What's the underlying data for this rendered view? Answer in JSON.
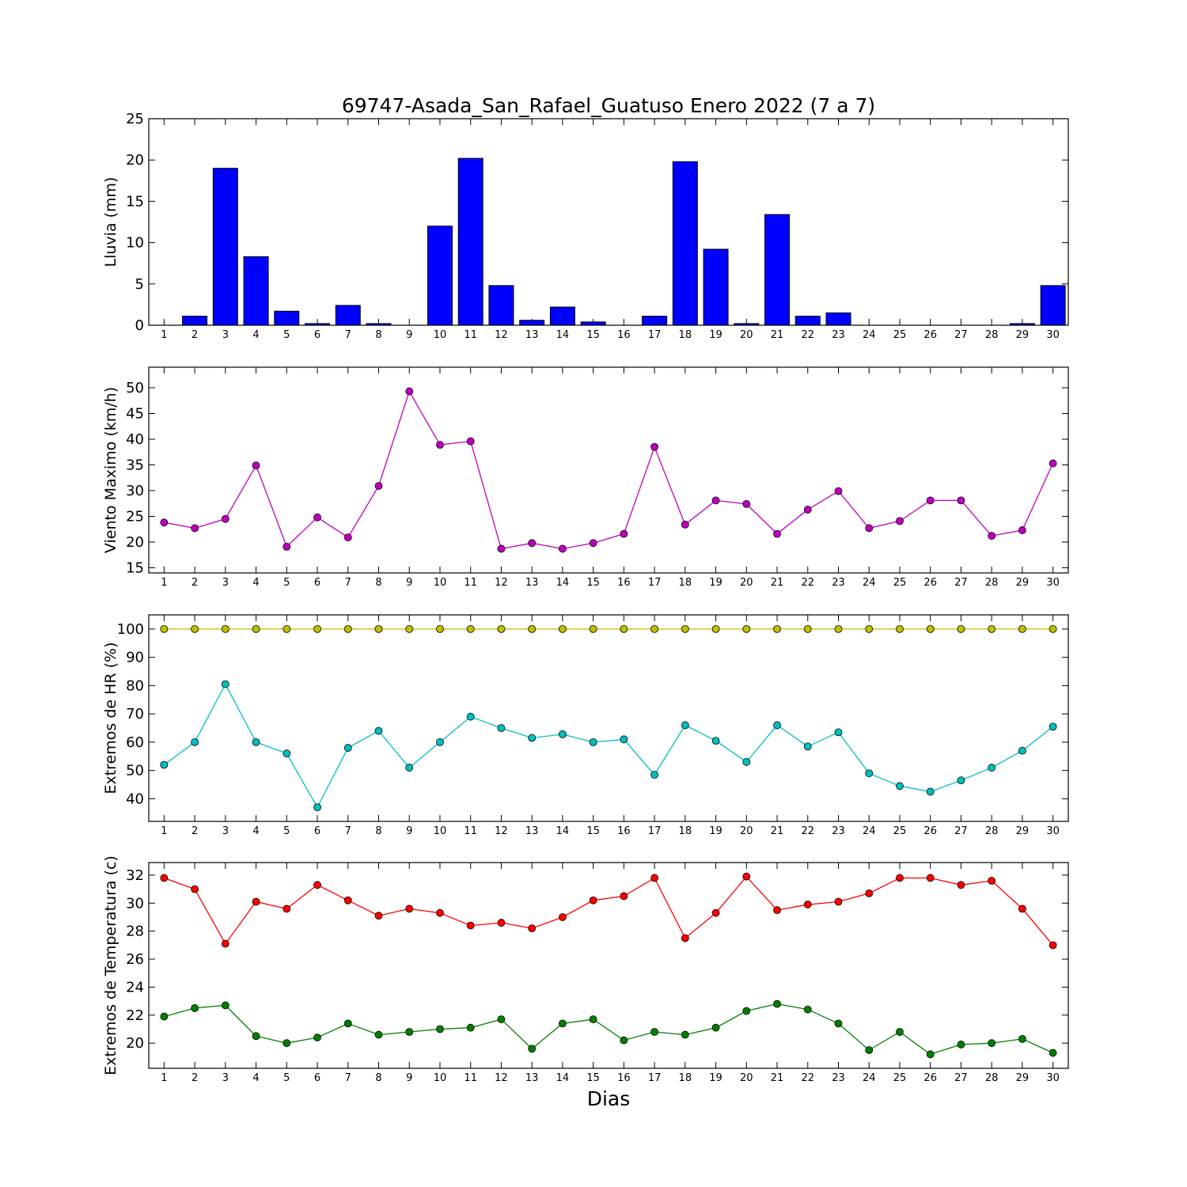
{
  "chart_data": [
    {
      "type": "bar",
      "title": "69747-Asada_San_Rafael_Guatuso Enero 2022  (7 a 7)",
      "ylabel": "Lluvia (mm)",
      "xlabel": "",
      "ylim": [
        0,
        25
      ],
      "yticks": [
        0,
        5,
        10,
        15,
        20,
        25
      ],
      "categories": [
        "1",
        "2",
        "3",
        "4",
        "5",
        "6",
        "7",
        "8",
        "9",
        "10",
        "11",
        "12",
        "13",
        "14",
        "15",
        "16",
        "17",
        "18",
        "19",
        "20",
        "21",
        "22",
        "23",
        "24",
        "25",
        "26",
        "27",
        "28",
        "29",
        "30"
      ],
      "series": [
        {
          "color": "#0000ff",
          "values": [
            0,
            1.1,
            19,
            8.3,
            1.7,
            0.2,
            2.4,
            0.2,
            0,
            12,
            20.2,
            4.8,
            0.6,
            2.2,
            0.4,
            0,
            1.1,
            19.8,
            9.2,
            0.2,
            13.4,
            1.1,
            1.5,
            0,
            0,
            0,
            0,
            0,
            0.2,
            4.8
          ]
        }
      ],
      "grid": false
    },
    {
      "type": "line",
      "ylabel": "Viento Maximo (km/h)",
      "ylim": [
        14,
        54
      ],
      "yticks": [
        15,
        20,
        25,
        30,
        35,
        40,
        45,
        50
      ],
      "categories": [
        "1",
        "2",
        "3",
        "4",
        "5",
        "6",
        "7",
        "8",
        "9",
        "10",
        "11",
        "12",
        "13",
        "14",
        "15",
        "16",
        "17",
        "18",
        "19",
        "20",
        "21",
        "22",
        "23",
        "24",
        "25",
        "26",
        "27",
        "28",
        "29",
        "30"
      ],
      "series": [
        {
          "color": "#bf00bf",
          "values": [
            23.8,
            22.7,
            24.5,
            34.9,
            19.1,
            24.8,
            20.9,
            30.9,
            49.3,
            38.9,
            39.6,
            18.7,
            19.8,
            18.7,
            19.8,
            21.6,
            38.5,
            23.4,
            28.1,
            27.4,
            21.6,
            26.3,
            29.9,
            22.7,
            24.1,
            28.1,
            28.1,
            21.2,
            22.3,
            35.3
          ]
        }
      ],
      "grid": false
    },
    {
      "type": "line",
      "ylabel": "Extremos de HR (%)",
      "ylim": [
        32,
        105
      ],
      "yticks": [
        40,
        50,
        60,
        70,
        80,
        90,
        100
      ],
      "categories": [
        "1",
        "2",
        "3",
        "4",
        "5",
        "6",
        "7",
        "8",
        "9",
        "10",
        "11",
        "12",
        "13",
        "14",
        "15",
        "16",
        "17",
        "18",
        "19",
        "20",
        "21",
        "22",
        "23",
        "24",
        "25",
        "26",
        "27",
        "28",
        "29",
        "30"
      ],
      "series": [
        {
          "color": "#bfbf00",
          "values": [
            100,
            100,
            100,
            100,
            100,
            100,
            100,
            100,
            100,
            100,
            100,
            100,
            100,
            100,
            100,
            100,
            100,
            100,
            100,
            100,
            100,
            100,
            100,
            100,
            100,
            100,
            100,
            100,
            100,
            100
          ]
        },
        {
          "color": "#00bfbf",
          "values": [
            52,
            60,
            80.5,
            60,
            56,
            37,
            58,
            64,
            51,
            60,
            69,
            65,
            61.5,
            62.8,
            60,
            61,
            48.5,
            66,
            60.5,
            53,
            66,
            58.5,
            63.5,
            49,
            44.5,
            42.5,
            46.5,
            51,
            57,
            65.5
          ]
        }
      ],
      "grid": false
    },
    {
      "type": "line",
      "ylabel": "Extremos de Temperatura (c)",
      "xlabel": "Dias",
      "ylim": [
        18.2,
        32.9
      ],
      "yticks": [
        20,
        22,
        24,
        26,
        28,
        30,
        32
      ],
      "categories": [
        "1",
        "2",
        "3",
        "4",
        "5",
        "6",
        "7",
        "8",
        "9",
        "10",
        "11",
        "12",
        "13",
        "14",
        "15",
        "16",
        "17",
        "18",
        "19",
        "20",
        "21",
        "22",
        "23",
        "24",
        "25",
        "26",
        "27",
        "28",
        "29",
        "30"
      ],
      "series": [
        {
          "color": "#ff0000",
          "values": [
            31.8,
            31,
            27.1,
            30.1,
            29.6,
            31.3,
            30.2,
            29.1,
            29.6,
            29.3,
            28.4,
            28.6,
            28.2,
            29,
            30.2,
            30.5,
            31.8,
            27.5,
            29.3,
            31.9,
            29.5,
            29.9,
            30.1,
            30.7,
            31.8,
            31.8,
            31.3,
            31.6,
            29.6,
            27
          ]
        },
        {
          "color": "#008000",
          "values": [
            21.9,
            22.5,
            22.7,
            20.5,
            20,
            20.4,
            21.4,
            20.6,
            20.8,
            21,
            21.1,
            21.7,
            19.6,
            21.4,
            21.7,
            20.2,
            20.8,
            20.6,
            21.1,
            22.3,
            22.8,
            22.4,
            21.4,
            19.5,
            20.8,
            19.2,
            19.9,
            20,
            20.3,
            19.3
          ]
        }
      ],
      "grid": false
    }
  ]
}
